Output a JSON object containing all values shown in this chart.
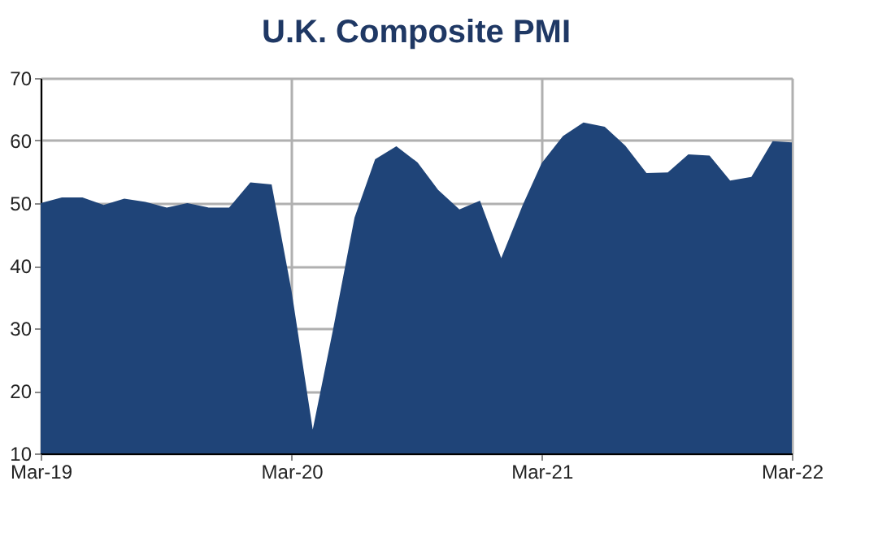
{
  "chart_data": {
    "type": "area",
    "title": "U.K. Composite PMI",
    "x": [
      "2019-03",
      "2019-04",
      "2019-05",
      "2019-06",
      "2019-07",
      "2019-08",
      "2019-09",
      "2019-10",
      "2019-11",
      "2019-12",
      "2020-01",
      "2020-02",
      "2020-03",
      "2020-04",
      "2020-05",
      "2020-06",
      "2020-07",
      "2020-08",
      "2020-09",
      "2020-10",
      "2020-11",
      "2020-12",
      "2021-01",
      "2021-02",
      "2021-03",
      "2021-04",
      "2021-05",
      "2021-06",
      "2021-07",
      "2021-08",
      "2021-09",
      "2021-10",
      "2021-11",
      "2021-12",
      "2022-01",
      "2022-02",
      "2022-03"
    ],
    "series": [
      {
        "color": "#1f4478",
        "values": [
          50.0,
          50.9,
          50.9,
          49.7,
          50.7,
          50.2,
          49.3,
          50.0,
          49.3,
          49.3,
          53.3,
          53.0,
          36.0,
          13.8,
          30.0,
          47.7,
          57.0,
          59.1,
          56.5,
          52.1,
          49.0,
          50.4,
          41.2,
          49.6,
          56.4,
          60.7,
          62.9,
          62.2,
          59.2,
          54.8,
          54.9,
          57.8,
          57.6,
          53.6,
          54.2,
          59.9,
          59.7
        ]
      }
    ],
    "xlim": [
      "2019-03",
      "2022-03"
    ],
    "xticks": [
      {
        "value": "2019-03",
        "label": "Mar-19"
      },
      {
        "value": "2020-03",
        "label": "Mar-20"
      },
      {
        "value": "2021-03",
        "label": "Mar-21"
      },
      {
        "value": "2022-03",
        "label": "Mar-22"
      }
    ],
    "ylim": [
      10,
      70
    ],
    "yticks": [
      10,
      20,
      30,
      40,
      50,
      60,
      70
    ],
    "grid": true,
    "legend": false
  }
}
